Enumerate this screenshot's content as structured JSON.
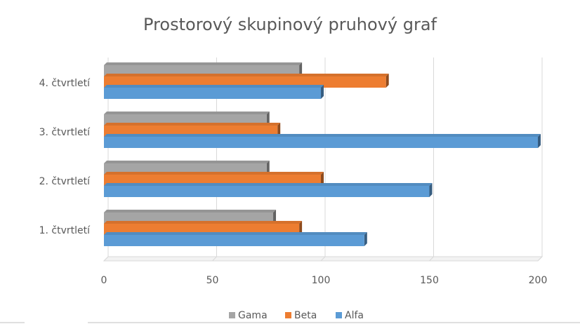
{
  "chart_data": {
    "type": "bar",
    "orientation": "horizontal",
    "three_d": true,
    "title": "Prostorový skupinový pruhový graf",
    "categories": [
      "1. čtvrtletí",
      "2. čtvrtletí",
      "3. čtvrtletí",
      "4. čtvrtletí"
    ],
    "series": [
      {
        "name": "Alfa",
        "color": "#5b9bd5",
        "values": [
          120,
          150,
          200,
          100
        ]
      },
      {
        "name": "Beta",
        "color": "#ed7d31",
        "values": [
          90,
          100,
          80,
          130
        ]
      },
      {
        "name": "Gama",
        "color": "#a5a5a5",
        "values": [
          78,
          75,
          75,
          90
        ]
      }
    ],
    "xlim": [
      0,
      200
    ],
    "xticks": [
      0,
      50,
      100,
      150,
      200
    ],
    "grid": true,
    "legend": "bottom"
  }
}
